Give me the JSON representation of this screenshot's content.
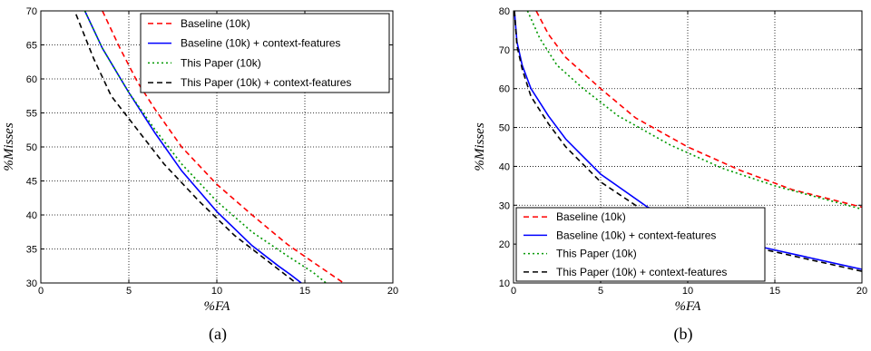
{
  "chart_data": [
    {
      "type": "line",
      "caption": "(a)",
      "xlabel": "%FA",
      "ylabel": "%Misses",
      "xlim": [
        0,
        20
      ],
      "ylim": [
        30,
        70
      ],
      "xticks": [
        0,
        5,
        10,
        15,
        20
      ],
      "yticks": [
        30,
        35,
        40,
        45,
        50,
        55,
        60,
        65,
        70
      ],
      "grid": true,
      "legend_position": "top-right",
      "series": [
        {
          "name": "Baseline (10k)",
          "color": "#ff0000",
          "dash": "dashed",
          "x": [
            3.5,
            4.5,
            5.5,
            6.5,
            8,
            10,
            12,
            14,
            15.5,
            17.2
          ],
          "y": [
            70,
            64.5,
            59.5,
            55.5,
            50,
            44.5,
            40,
            35.7,
            33,
            30
          ]
        },
        {
          "name": "Baseline (10k) + context-features",
          "color": "#0000ff",
          "dash": "solid",
          "x": [
            2.5,
            3.5,
            5,
            6.5,
            8,
            10,
            12,
            13.5,
            14.2,
            14.8
          ],
          "y": [
            70,
            64.5,
            58,
            52,
            46.5,
            40.5,
            35.5,
            32.5,
            31.2,
            30
          ]
        },
        {
          "name": "This Paper (10k)",
          "color": "#009900",
          "dash": "dashdot",
          "x": [
            2.5,
            3.5,
            5,
            6.5,
            8,
            10,
            12,
            14,
            15.5,
            16.2
          ],
          "y": [
            70,
            64.5,
            58,
            52.5,
            47.5,
            42,
            37.5,
            34,
            31.5,
            30
          ]
        },
        {
          "name": "This Paper (10k) + context-features",
          "color": "#000000",
          "dash": "dashed",
          "x": [
            2,
            3,
            4,
            5.5,
            7,
            9,
            11,
            13,
            14.5
          ],
          "y": [
            69.5,
            63,
            57.5,
            52.5,
            47.5,
            42,
            37,
            33,
            30
          ]
        }
      ]
    },
    {
      "type": "line",
      "caption": "(b)",
      "xlabel": "%FA",
      "ylabel": "%Misses",
      "xlim": [
        0,
        20
      ],
      "ylim": [
        10,
        80
      ],
      "xticks": [
        0,
        5,
        10,
        15,
        20
      ],
      "yticks": [
        10,
        20,
        30,
        40,
        50,
        60,
        70,
        80
      ],
      "grid": true,
      "legend_position": "lower-left",
      "series": [
        {
          "name": "Baseline (10k)",
          "color": "#ff0000",
          "dash": "dashed",
          "x": [
            1.3,
            2,
            3,
            5,
            7,
            10,
            13,
            16,
            20
          ],
          "y": [
            80,
            74,
            68,
            60,
            52.5,
            45,
            39,
            34,
            29.5
          ]
        },
        {
          "name": "Baseline (10k) + context-features",
          "color": "#0000ff",
          "dash": "solid",
          "x": [
            0.05,
            0.2,
            0.5,
            1,
            2,
            3,
            5,
            7.7,
            12,
            15,
            20
          ],
          "y": [
            80,
            72,
            66,
            60,
            53,
            47,
            38,
            29.5,
            21.5,
            18.5,
            13.5
          ]
        },
        {
          "name": "This Paper (10k)",
          "color": "#009900",
          "dash": "dashdot",
          "x": [
            0.8,
            1.5,
            2.5,
            4,
            6,
            9,
            12,
            15,
            20
          ],
          "y": [
            80,
            73,
            66,
            60,
            53,
            45.5,
            39.5,
            35,
            29
          ]
        },
        {
          "name": "This Paper (10k) + context-features",
          "color": "#000000",
          "dash": "dashed",
          "x": [
            0.05,
            0.2,
            0.5,
            1,
            2,
            3,
            5,
            7.5,
            12,
            15,
            20
          ],
          "y": [
            80,
            71,
            65,
            58,
            51,
            45,
            36,
            28.5,
            21,
            18,
            13
          ]
        }
      ]
    }
  ]
}
